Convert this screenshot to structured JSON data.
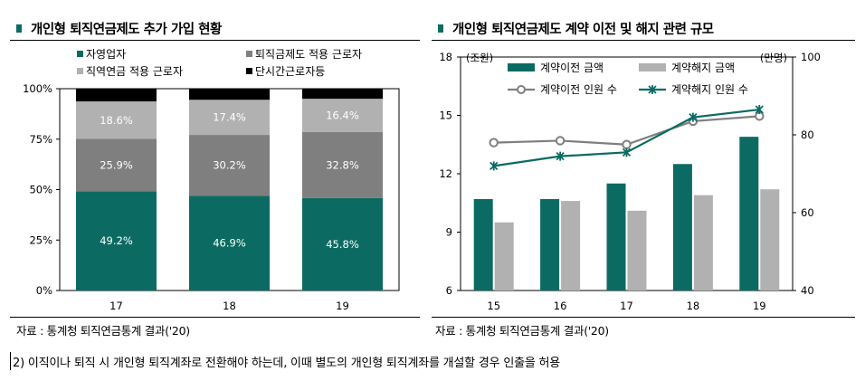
{
  "left_panel": {
    "title": "개인형 퇴직연금제도 추가 가입 현황",
    "source": "자료 : 통계청 퇴직연금통계 결과('20)"
  },
  "right_panel": {
    "title": "개인형 퇴직연금제도 계약 이전 및 해지 관련 규모",
    "source": "자료 : 통계청 퇴직연금통계 결과('20)"
  },
  "footnote": "2) 이직이나 퇴직 시 개인형 퇴직계좌로 전환해야 하는데, 이때 별도의 개인형 퇴직계좌를 개설할 경우 인출을 허용",
  "chart_data": [
    {
      "type": "bar",
      "stacked": true,
      "categories": [
        "17",
        "18",
        "19"
      ],
      "series": [
        {
          "name": "자영업자",
          "values": [
            49.2,
            46.9,
            45.8
          ],
          "labels": [
            "49.2%",
            "46.9%",
            "45.8%"
          ],
          "color": "#0b6b62"
        },
        {
          "name": "퇴직금제도 적용 근로자",
          "values": [
            25.9,
            30.2,
            32.8
          ],
          "labels": [
            "25.9%",
            "30.2%",
            "32.8%"
          ],
          "color": "#7f7f7f"
        },
        {
          "name": "직역연금 적용 근로자",
          "values": [
            18.6,
            17.4,
            16.4
          ],
          "labels": [
            "18.6%",
            "17.4%",
            "16.4%"
          ],
          "color": "#b1b1b1"
        },
        {
          "name": "단시간근로자등",
          "values": [
            6.3,
            5.5,
            5.0
          ],
          "color": "#000000"
        }
      ],
      "ylim": [
        0,
        100
      ],
      "yticks": [
        "0%",
        "25%",
        "50%",
        "75%",
        "100%"
      ],
      "legend_position": "top"
    },
    {
      "type": "bar+line",
      "categories": [
        "15",
        "16",
        "17",
        "18",
        "19"
      ],
      "left_axis": {
        "unit": "(조원)",
        "ylim": [
          6,
          18
        ],
        "ticks": [
          "6",
          "9",
          "12",
          "15",
          "18"
        ]
      },
      "right_axis": {
        "unit": "(만명)",
        "ylim": [
          40,
          100
        ],
        "ticks": [
          "40",
          "60",
          "80",
          "100"
        ]
      },
      "bar_series": [
        {
          "name": "계약이전 금액",
          "values": [
            10.7,
            10.7,
            11.5,
            12.5,
            13.9
          ],
          "color": "#0b6b62"
        },
        {
          "name": "계약해지 금액",
          "values": [
            9.5,
            10.6,
            10.1,
            10.9,
            11.2
          ],
          "color": "#b1b1b1"
        }
      ],
      "line_series": [
        {
          "name": "계약이전 인원 수",
          "values": [
            78,
            78.5,
            77.5,
            83.5,
            84.8
          ],
          "color": "#7f7f7f",
          "marker": "circle"
        },
        {
          "name": "계약해지 인원 수",
          "values": [
            72,
            74.5,
            75.5,
            84.5,
            86.5
          ],
          "color": "#0b6b62",
          "marker": "x"
        }
      ],
      "legend_position": "top"
    }
  ]
}
